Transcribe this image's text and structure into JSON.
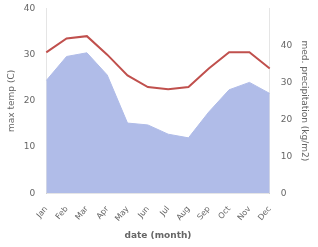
{
  "chart_data": {
    "type": "line",
    "categories": [
      "Jan",
      "Feb",
      "Mar",
      "Apr",
      "May",
      "Jun",
      "Jul",
      "Aug",
      "Sep",
      "Oct",
      "Nov",
      "Dec"
    ],
    "xlabel": "date (month)",
    "ylabel": "max temp (C)",
    "y2label": "med. precipitation (kg/m2)",
    "ylim": [
      0,
      40
    ],
    "yticks": [
      0,
      10,
      20,
      30,
      40
    ],
    "y2lim": [
      0,
      50
    ],
    "y2ticks": [
      0,
      10,
      20,
      30,
      40
    ],
    "grid": false,
    "series": [
      {
        "type": "area",
        "color": "#b0bce8",
        "axis": "y2",
        "values": [
          30.5,
          37.0,
          38.0,
          32.0,
          19.0,
          18.5,
          16.0,
          15.0,
          22.0,
          28.0,
          30.0,
          27.0
        ]
      },
      {
        "type": "line",
        "color": "#c0504d",
        "values": [
          30.5,
          33.5,
          34.0,
          30.0,
          25.5,
          23.0,
          22.5,
          23.0,
          27.0,
          30.5,
          30.5,
          27.0
        ]
      }
    ]
  }
}
